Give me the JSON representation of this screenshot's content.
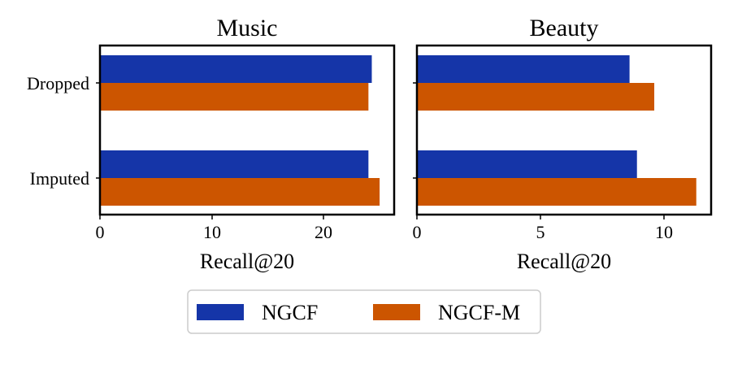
{
  "colors": {
    "NGCF": "#1535a8",
    "NGCF-M": "#cc5500"
  },
  "legend": {
    "position": "bottom-center",
    "entries": [
      "NGCF",
      "NGCF-M"
    ]
  },
  "chart_data": [
    {
      "type": "bar",
      "orientation": "horizontal",
      "title": "Music",
      "xlabel": "Recall@20",
      "categories": [
        "Dropped",
        "Imputed"
      ],
      "series": [
        {
          "name": "NGCF",
          "values": [
            24.3,
            24.0
          ]
        },
        {
          "name": "NGCF-M",
          "values": [
            24.0,
            25.0
          ]
        }
      ],
      "xlim": [
        0,
        26.3
      ],
      "xticks": [
        "0",
        "10",
        "20"
      ],
      "grid": false
    },
    {
      "type": "bar",
      "orientation": "horizontal",
      "title": "Beauty",
      "xlabel": "Recall@20",
      "categories": [
        "Dropped",
        "Imputed"
      ],
      "series": [
        {
          "name": "NGCF",
          "values": [
            8.6,
            8.9
          ]
        },
        {
          "name": "NGCF-M",
          "values": [
            9.6,
            11.3
          ]
        }
      ],
      "xlim": [
        0,
        11.9
      ],
      "xticks": [
        "0",
        "5",
        "10"
      ],
      "grid": false
    }
  ]
}
